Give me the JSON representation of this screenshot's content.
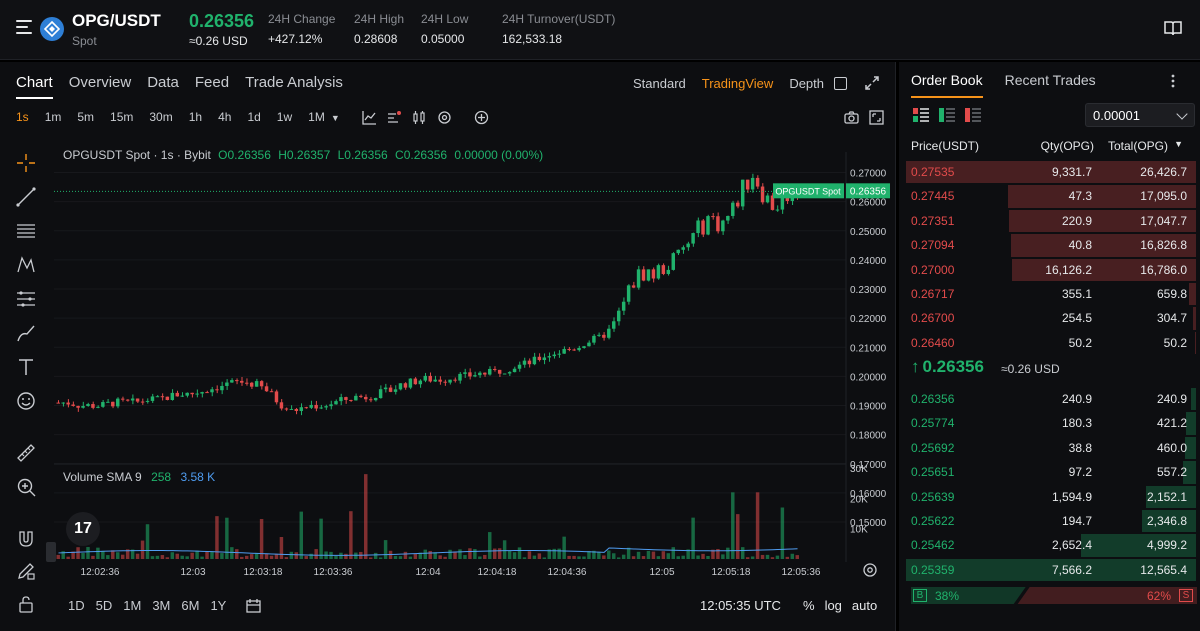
{
  "header": {
    "pair": "OPG/USDT",
    "market": "Spot",
    "last_price": "0.26356",
    "last_price_usd": "≈0.26 USD",
    "stats": [
      {
        "label": "24H Change",
        "value": "+427.12%"
      },
      {
        "label": "24H High",
        "value": "0.28608"
      },
      {
        "label": "24H Low",
        "value": "0.05000"
      },
      {
        "label": "24H Turnover(USDT)",
        "value": "162,533.18"
      }
    ],
    "icons": {
      "menu": "menu-icon",
      "coin": "coin-logo-icon",
      "book": "book-icon"
    }
  },
  "chart_tabs": [
    "Chart",
    "Overview",
    "Data",
    "Feed",
    "Trade Analysis"
  ],
  "chart_views": [
    "Standard",
    "TradingView",
    "Depth"
  ],
  "active_view": "TradingView",
  "timeframes": [
    "1s",
    "1m",
    "5m",
    "15m",
    "30m",
    "1h",
    "4h",
    "1d",
    "1w",
    "1M"
  ],
  "active_timeframe": "1s",
  "legend": {
    "symbol": "OPGUSDT Spot · 1s · Bybit",
    "open": "O0.26356",
    "high": "H0.26357",
    "low": "L0.26356",
    "close": "C0.26356",
    "change": "0.00000 (0.00%)"
  },
  "volume_legend": {
    "label": "Volume SMA 9",
    "v1": "258",
    "v2": "3.58 K"
  },
  "price_tag": {
    "label": "OPGUSDT Spot",
    "value": "0.26356"
  },
  "ranges": [
    "1D",
    "5D",
    "1M",
    "3M",
    "6M",
    "1Y"
  ],
  "utc_time": "12:05:35 UTC",
  "scale_options": [
    "%",
    "log",
    "auto"
  ],
  "tv_logo": "17",
  "chart_data": {
    "type": "candlestick",
    "price_axis": [
      "0.27000",
      "0.26000",
      "0.25000",
      "0.24000",
      "0.23000",
      "0.22000",
      "0.21000",
      "0.20000",
      "0.19000",
      "0.18000",
      "0.17000",
      "0.16000",
      "0.15000"
    ],
    "volume_axis": [
      "30K",
      "20K",
      "10K"
    ],
    "time_axis": [
      "12:02:36",
      "12:03",
      "12:03:18",
      "12:03:36",
      "12:04",
      "12:04:18",
      "12:04:36",
      "12:05",
      "12:05:18",
      "12:05:36"
    ],
    "ylim": [
      0.15,
      0.275
    ],
    "close_series": [
      0.191,
      0.191,
      0.19,
      0.19,
      0.19,
      0.191,
      0.191,
      0.191,
      0.192,
      0.192,
      0.193,
      0.194,
      0.194,
      0.195,
      0.196,
      0.197,
      0.198,
      0.198,
      0.197,
      0.195,
      0.191,
      0.188,
      0.189,
      0.19,
      0.19,
      0.191,
      0.192,
      0.193,
      0.193,
      0.194,
      0.195,
      0.197,
      0.198,
      0.199,
      0.199,
      0.199,
      0.2,
      0.2,
      0.201,
      0.201,
      0.202,
      0.203,
      0.204,
      0.205,
      0.207,
      0.208,
      0.209,
      0.21,
      0.212,
      0.213,
      0.216,
      0.222,
      0.232,
      0.236,
      0.235,
      0.238,
      0.24,
      0.245,
      0.25,
      0.255,
      0.252,
      0.256,
      0.264,
      0.27,
      0.262,
      0.258,
      0.263,
      0.264
    ]
  },
  "order_book": {
    "tabs": [
      "Order Book",
      "Recent Trades"
    ],
    "precision": "0.00001",
    "headers": {
      "price": "Price(USDT)",
      "qty": "Qty(OPG)",
      "total": "Total(OPG)"
    },
    "asks": [
      {
        "price": "0.27535",
        "qty": "9,331.7",
        "total": "26,426.7",
        "depth": 1.0
      },
      {
        "price": "0.27445",
        "qty": "47.3",
        "total": "17,095.0",
        "depth": 0.647
      },
      {
        "price": "0.27351",
        "qty": "220.9",
        "total": "17,047.7",
        "depth": 0.645
      },
      {
        "price": "0.27094",
        "qty": "40.8",
        "total": "16,826.8",
        "depth": 0.637
      },
      {
        "price": "0.27000",
        "qty": "16,126.2",
        "total": "16,786.0",
        "depth": 0.635
      },
      {
        "price": "0.26717",
        "qty": "355.1",
        "total": "659.8",
        "depth": 0.025
      },
      {
        "price": "0.26700",
        "qty": "254.5",
        "total": "304.7",
        "depth": 0.012
      },
      {
        "price": "0.26460",
        "qty": "50.2",
        "total": "50.2",
        "depth": 0.002
      }
    ],
    "mid_price": "0.26356",
    "mid_usd": "≈0.26 USD",
    "bids": [
      {
        "price": "0.26356",
        "qty": "240.9",
        "total": "240.9",
        "depth": 0.019
      },
      {
        "price": "0.25774",
        "qty": "180.3",
        "total": "421.2",
        "depth": 0.034
      },
      {
        "price": "0.25692",
        "qty": "38.8",
        "total": "460.0",
        "depth": 0.037
      },
      {
        "price": "0.25651",
        "qty": "97.2",
        "total": "557.2",
        "depth": 0.044
      },
      {
        "price": "0.25639",
        "qty": "1,594.9",
        "total": "2,152.1",
        "depth": 0.171
      },
      {
        "price": "0.25622",
        "qty": "194.7",
        "total": "2,346.8",
        "depth": 0.187
      },
      {
        "price": "0.25462",
        "qty": "2,652.4",
        "total": "4,999.2",
        "depth": 0.398
      },
      {
        "price": "0.25359",
        "qty": "7,566.2",
        "total": "12,565.4",
        "depth": 1.0
      }
    ],
    "buy_label": "B",
    "buy_pct": "38%",
    "sell_pct": "62%",
    "sell_label": "S",
    "buy_ratio": 0.38
  },
  "colors": {
    "up": "#20b26c",
    "down": "#e24b4b",
    "accent": "#f7931a"
  }
}
